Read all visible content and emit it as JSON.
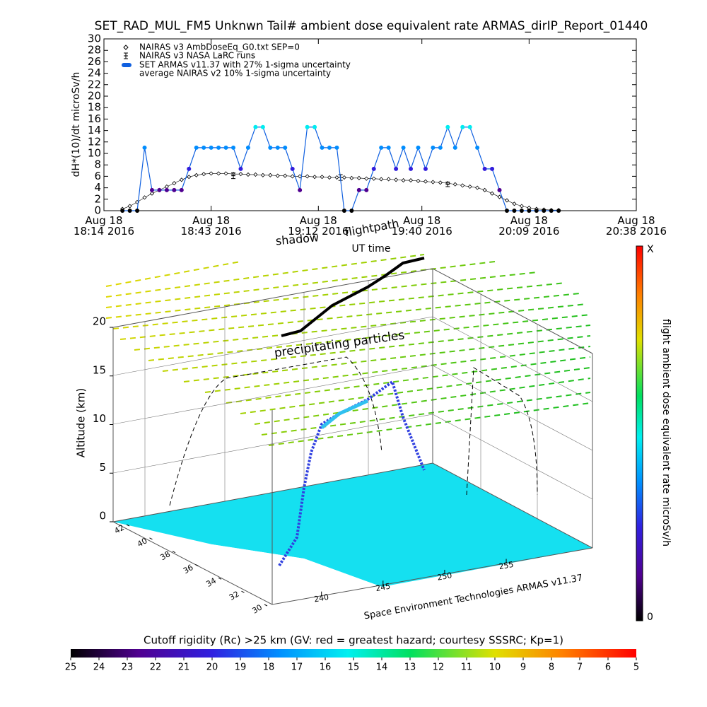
{
  "chart_data": [
    {
      "type": "line",
      "title": "SET_RAD_MUL_FM5 Unknwn Tail#  ambient dose equivalent rate ARMAS_dirIP_Report_01440",
      "ylabel": "dH*(10)/dt microSv/h",
      "xlabel": "UT time",
      "ylim": [
        0,
        30
      ],
      "yticks": [
        0,
        2,
        4,
        6,
        8,
        10,
        12,
        14,
        16,
        18,
        20,
        22,
        24,
        26,
        28,
        30
      ],
      "xlim": [
        "2016-08-18T18:14",
        "2016-08-18T20:38"
      ],
      "xticks": [
        {
          "value": "2016-08-18T18:14",
          "label": "Aug 18\n18:14 2016"
        },
        {
          "value": "2016-08-18T18:43",
          "label": "Aug 18\n18:43 2016"
        },
        {
          "value": "2016-08-18T19:12",
          "label": "Aug 18\n19:12 2016"
        },
        {
          "value": "2016-08-18T19:40",
          "label": "Aug 18\n19:40 2016"
        },
        {
          "value": "2016-08-18T20:09",
          "label": "Aug 18\n20:09 2016"
        },
        {
          "value": "2016-08-18T20:38",
          "label": "Aug 18\n20:38 2016"
        }
      ],
      "grid": false,
      "legend": "upper left",
      "x": [
        "2016-08-18T18:19",
        "2016-08-18T18:21",
        "2016-08-18T18:23",
        "2016-08-18T18:25",
        "2016-08-18T18:27",
        "2016-08-18T18:29",
        "2016-08-18T18:31",
        "2016-08-18T18:33",
        "2016-08-18T18:35",
        "2016-08-18T18:37",
        "2016-08-18T18:39",
        "2016-08-18T18:41",
        "2016-08-18T18:43",
        "2016-08-18T18:45",
        "2016-08-18T18:47",
        "2016-08-18T18:49",
        "2016-08-18T18:51",
        "2016-08-18T18:53",
        "2016-08-18T18:55",
        "2016-08-18T18:57",
        "2016-08-18T18:59",
        "2016-08-18T19:01",
        "2016-08-18T19:03",
        "2016-08-18T19:05",
        "2016-08-18T19:07",
        "2016-08-18T19:09",
        "2016-08-18T19:11",
        "2016-08-18T19:13",
        "2016-08-18T19:15",
        "2016-08-18T19:17",
        "2016-08-18T19:19",
        "2016-08-18T19:21",
        "2016-08-18T19:23",
        "2016-08-18T19:25",
        "2016-08-18T19:27",
        "2016-08-18T19:29",
        "2016-08-18T19:31",
        "2016-08-18T19:33",
        "2016-08-18T19:35",
        "2016-08-18T19:37",
        "2016-08-18T19:39",
        "2016-08-18T19:41",
        "2016-08-18T19:43",
        "2016-08-18T19:45",
        "2016-08-18T19:47",
        "2016-08-18T19:49",
        "2016-08-18T19:51",
        "2016-08-18T19:53",
        "2016-08-18T19:55",
        "2016-08-18T19:57",
        "2016-08-18T19:59",
        "2016-08-18T20:01",
        "2016-08-18T20:03",
        "2016-08-18T20:05",
        "2016-08-18T20:07",
        "2016-08-18T20:09",
        "2016-08-18T20:11",
        "2016-08-18T20:13",
        "2016-08-18T20:15",
        "2016-08-18T20:17"
      ],
      "series": [
        {
          "name": "NAIRAS v3 AmbDoseEq_G0.txt SEP=0",
          "marker": "diamond",
          "color": "#000000",
          "values": [
            0.3,
            0.8,
            1.5,
            2.3,
            3,
            3.6,
            4.2,
            4.8,
            5.4,
            5.9,
            6.2,
            6.4,
            6.5,
            6.5,
            6.5,
            6.4,
            6.4,
            6.3,
            6.3,
            6.2,
            6.2,
            6.1,
            6.1,
            6.0,
            6.0,
            6.0,
            5.9,
            5.9,
            5.8,
            5.8,
            5.8,
            5.7,
            5.7,
            5.6,
            5.6,
            5.5,
            5.5,
            5.4,
            5.3,
            5.3,
            5.2,
            5.1,
            5.0,
            4.9,
            4.8,
            4.6,
            4.4,
            4.2,
            4.0,
            3.6,
            3.0,
            2.4,
            1.8,
            1.2,
            0.8,
            0.5,
            0.3,
            0.2,
            0.1,
            0.1
          ]
        },
        {
          "name": "NAIRAS v3 NASA LaRC runs",
          "marker": "errorbar",
          "color": "#000000",
          "x": [
            "2016-08-18T18:49",
            "2016-08-18T19:18",
            "2016-08-18T19:47"
          ],
          "values": [
            6.1,
            5.8,
            4.6
          ],
          "errors": [
            0.5,
            0.5,
            0.4
          ]
        },
        {
          "name": "SET ARMAS v11.37 with 27% 1-sigma uncertainty",
          "marker": "dot",
          "color": "#1060e0",
          "values": [
            0,
            0,
            0,
            11,
            3.6,
            3.6,
            3.6,
            3.6,
            3.6,
            7.3,
            11,
            11,
            11,
            11,
            11,
            11,
            7.3,
            11,
            14.6,
            14.6,
            11,
            11,
            11,
            7.3,
            3.6,
            14.6,
            14.6,
            11,
            11,
            11,
            0,
            0,
            3.6,
            3.6,
            7.3,
            11,
            11,
            7.3,
            11,
            7.3,
            11,
            7.3,
            11,
            11,
            14.6,
            11,
            14.6,
            14.6,
            11,
            7.3,
            7.3,
            3.6,
            0,
            0,
            0,
            0,
            0,
            0,
            0,
            0
          ]
        }
      ],
      "legend_notes": [
        "average NAIRAS v2 10% 1-sigma uncertainty"
      ]
    },
    {
      "type": "surface3d",
      "zlabel": "Altitude (km)",
      "zlim": [
        0,
        20
      ],
      "zticks": [
        0,
        5,
        10,
        15,
        20
      ],
      "ylim": [
        30,
        42
      ],
      "yticks": [
        30,
        32,
        34,
        36,
        38,
        40,
        42
      ],
      "xlim": [
        236,
        262
      ],
      "xticks": [
        240,
        245,
        250,
        255
      ],
      "annotations": [
        "shadow",
        "flightpath",
        "precipitating particles"
      ],
      "footer": "Space Environment Technologies ARMAS v11.37",
      "colorbar_label": "flight ambient dose equivalent rate microSv/h",
      "colorbar_min": 0,
      "colorbar_max_label": "X"
    },
    {
      "type": "colorbar",
      "title": "Cutoff rigidity (Rc) >25 km (GV: red = greatest hazard; courtesy SSSRC; Kp=1)",
      "xlim": [
        25,
        5
      ],
      "xticks": [
        25,
        24,
        23,
        22,
        21,
        20,
        19,
        18,
        17,
        16,
        15,
        14,
        13,
        12,
        11,
        10,
        9,
        8,
        7,
        6,
        5
      ]
    }
  ]
}
